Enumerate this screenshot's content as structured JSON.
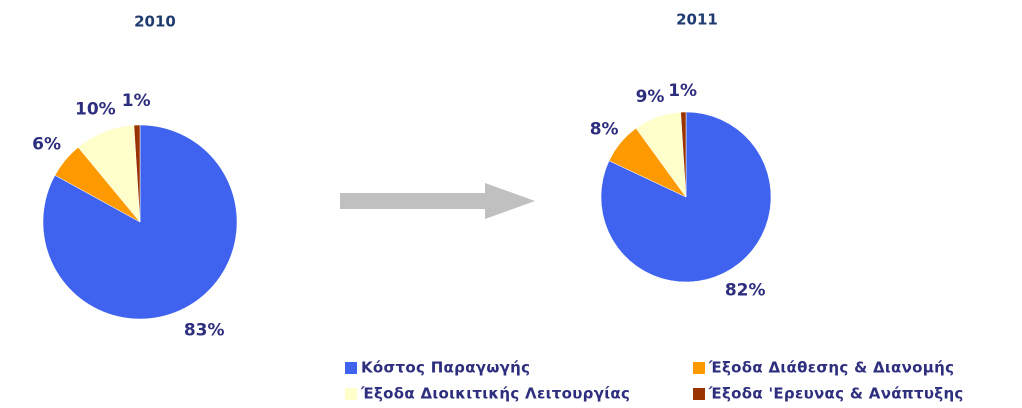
{
  "chart_data": [
    {
      "type": "pie",
      "title": "2010",
      "categories": [
        "Κόστος Παραγωγής",
        "Έξοδα Διάθεσης & Διανομής",
        "Έξοδα Διοικιτικής Λειτουργίας",
        "Έξοδα 'Ερευνας & Ανάπτυξης"
      ],
      "values": [
        83,
        6,
        10,
        1
      ],
      "value_labels": [
        "83%",
        "6%",
        "10%",
        "1%"
      ],
      "colors": [
        "#3f63ef",
        "#ff9900",
        "#ffffcc",
        "#993300"
      ]
    },
    {
      "type": "pie",
      "title": "2011",
      "categories": [
        "Κόστος Παραγωγής",
        "Έξοδα Διάθεσης & Διανομής",
        "Έξοδα Διοικιτικής Λειτουργίας",
        "Έξοδα 'Ερευνας & Ανάπτυξης"
      ],
      "values": [
        82,
        8,
        9,
        1
      ],
      "value_labels": [
        "82%",
        "8%",
        "9%",
        "1%"
      ],
      "colors": [
        "#3f63ef",
        "#ff9900",
        "#ffffcc",
        "#993300"
      ]
    }
  ]
}
